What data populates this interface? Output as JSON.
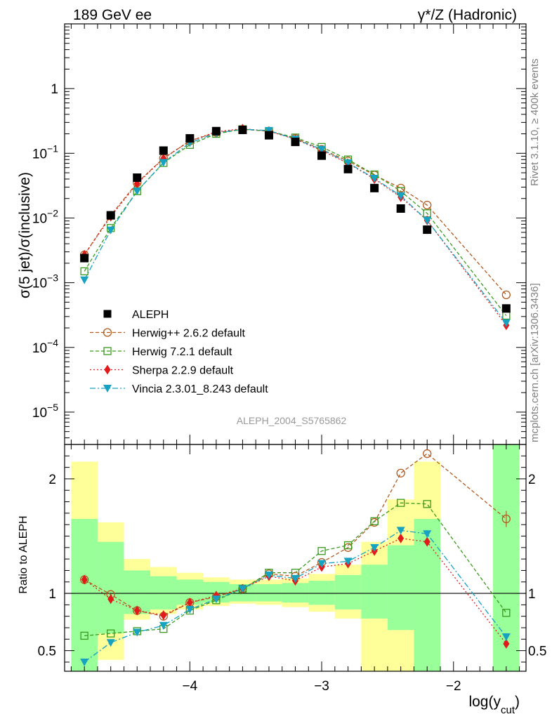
{
  "chart_data": {
    "type": "line",
    "title_left": "189 GeV ee",
    "title_right": "γ*/Z (Hadronic)",
    "analysis": "ALEPH_2004_S5765862",
    "xlabel": "log(y_cut)",
    "ylabel": "σ(5 jet)/σ(inclusive)",
    "ratio_ylabel": "Ratio to ALEPH",
    "side_text_top": "Rivet 3.1.10, ≥ 400k events",
    "side_text_bottom": "mcplots.cern.ch [arXiv:1306.3436]",
    "xlim": [
      -4.95,
      -1.45
    ],
    "ylim_log": [
      -5.5,
      1.0
    ],
    "ratio_ylim": [
      0.32,
      2.3
    ],
    "x_ticks": [
      -4,
      -3,
      -2
    ],
    "x_tick_labels": [
      "−4",
      "−3",
      "−2"
    ],
    "y_tick_labels": [
      {
        "base": "10",
        "exp": "−5",
        "pow": -5
      },
      {
        "base": "10",
        "exp": "−4",
        "pow": -4
      },
      {
        "base": "10",
        "exp": "−3",
        "pow": -3
      },
      {
        "base": "10",
        "exp": "−2",
        "pow": -2
      },
      {
        "base": "10",
        "exp": "−1",
        "pow": -1
      },
      {
        "base": "1",
        "exp": "",
        "pow": 0
      }
    ],
    "ratio_y_ticks": [
      0.5,
      1,
      2
    ],
    "ratio_y_tick_labels": [
      "0.5",
      "1",
      "2"
    ],
    "x": [
      -4.8,
      -4.6,
      -4.4,
      -4.2,
      -4.0,
      -3.8,
      -3.6,
      -3.4,
      -3.2,
      -3.0,
      -2.8,
      -2.6,
      -2.4,
      -2.2,
      -1.6
    ],
    "bin_edges": [
      -4.9,
      -4.7,
      -4.5,
      -4.3,
      -4.1,
      -3.9,
      -3.7,
      -3.5,
      -3.3,
      -3.1,
      -2.9,
      -2.7,
      -2.5,
      -2.3,
      -2.1,
      -1.7,
      -1.5
    ],
    "band_yellow": [
      [
        -4.9,
        -4.7,
        0.32,
        2.15
      ],
      [
        -4.7,
        -4.5,
        0.42,
        1.62
      ],
      [
        -4.5,
        -4.3,
        0.77,
        1.3
      ],
      [
        -4.3,
        -4.1,
        0.82,
        1.23
      ],
      [
        -4.1,
        -3.9,
        0.86,
        1.18
      ],
      [
        -3.9,
        -3.7,
        0.89,
        1.14
      ],
      [
        -3.7,
        -3.5,
        0.91,
        1.12
      ],
      [
        -3.5,
        -3.3,
        0.9,
        1.12
      ],
      [
        -3.3,
        -3.1,
        0.88,
        1.13
      ],
      [
        -3.1,
        -2.9,
        0.84,
        1.17
      ],
      [
        -2.9,
        -2.7,
        0.78,
        1.25
      ],
      [
        -2.7,
        -2.5,
        0.32,
        1.45
      ],
      [
        -2.5,
        -2.3,
        0.32,
        1.82
      ],
      [
        -2.3,
        -2.1,
        0.32,
        2.15
      ],
      [
        -1.7,
        -1.5,
        0.32,
        2.3
      ]
    ],
    "band_green": [
      [
        -4.9,
        -4.7,
        0.32,
        1.65
      ],
      [
        -4.7,
        -4.5,
        0.65,
        1.45
      ],
      [
        -4.5,
        -4.3,
        0.82,
        1.2
      ],
      [
        -4.3,
        -4.1,
        0.86,
        1.15
      ],
      [
        -4.1,
        -3.9,
        0.9,
        1.12
      ],
      [
        -3.9,
        -3.7,
        0.92,
        1.1
      ],
      [
        -3.7,
        -3.5,
        0.93,
        1.08
      ],
      [
        -3.5,
        -3.3,
        0.93,
        1.08
      ],
      [
        -3.3,
        -3.1,
        0.92,
        1.09
      ],
      [
        -3.1,
        -2.9,
        0.9,
        1.11
      ],
      [
        -2.9,
        -2.7,
        0.86,
        1.16
      ],
      [
        -2.7,
        -2.5,
        0.78,
        1.25
      ],
      [
        -2.5,
        -2.3,
        0.68,
        1.42
      ],
      [
        -2.3,
        -2.1,
        0.32,
        1.65
      ],
      [
        -1.7,
        -1.5,
        0.32,
        2.3
      ]
    ],
    "series": [
      {
        "name": "ALEPH",
        "legend": "ALEPH",
        "color": "#000000",
        "marker": "square",
        "line": "none",
        "values": [
          0.0024,
          0.011,
          0.042,
          0.11,
          0.17,
          0.22,
          0.23,
          0.19,
          0.15,
          0.092,
          0.057,
          0.029,
          0.014,
          0.0066,
          0.0004
        ]
      },
      {
        "name": "Herwig++ 2.6.2 default",
        "legend": "Herwig++ 2.6.2 default",
        "color": "#b35a1f",
        "marker": "open-circle",
        "line": "dashed",
        "values": [
          0.0027,
          0.011,
          0.035,
          0.084,
          0.155,
          0.21,
          0.235,
          0.22,
          0.17,
          0.115,
          0.076,
          0.046,
          0.029,
          0.0158,
          0.00065
        ],
        "ratio": [
          1.12,
          0.99,
          0.85,
          0.8,
          0.92,
          0.97,
          1.04,
          1.17,
          1.15,
          1.27,
          1.4,
          1.62,
          2.05,
          2.22,
          1.65
        ]
      },
      {
        "name": "Herwig 7.2.1 default",
        "legend": "Herwig 7.2.1 default",
        "color": "#3b9a1e",
        "marker": "open-square",
        "line": "dashed",
        "values": [
          0.0015,
          0.007,
          0.026,
          0.071,
          0.135,
          0.2,
          0.235,
          0.22,
          0.175,
          0.125,
          0.08,
          0.047,
          0.026,
          0.0118,
          0.00031
        ],
        "ratio": [
          0.63,
          0.65,
          0.67,
          0.69,
          0.85,
          0.94,
          1.04,
          1.18,
          1.18,
          1.37,
          1.42,
          1.63,
          1.79,
          1.78,
          0.83
        ]
      },
      {
        "name": "Sherpa 2.2.9 default",
        "legend": "Sherpa 2.2.9 default",
        "color": "#e31a1c",
        "marker": "diamond",
        "line": "dotted",
        "values": [
          0.0027,
          0.0105,
          0.034,
          0.083,
          0.155,
          0.215,
          0.24,
          0.22,
          0.165,
          0.11,
          0.07,
          0.04,
          0.021,
          0.0092,
          0.00022
        ],
        "ratio": [
          1.12,
          0.95,
          0.85,
          0.81,
          0.92,
          0.98,
          1.04,
          1.15,
          1.11,
          1.23,
          1.26,
          1.37,
          1.48,
          1.45,
          0.56
        ]
      },
      {
        "name": "Vincia 2.3.01_8.243 default",
        "legend": "Vincia 2.3.01_8.243 default",
        "color": "#17a2c2",
        "marker": "down-triangle",
        "line": "dashdot",
        "values": [
          0.0011,
          0.0065,
          0.026,
          0.072,
          0.145,
          0.205,
          0.235,
          0.225,
          0.165,
          0.115,
          0.071,
          0.041,
          0.022,
          0.0092,
          0.00024
        ],
        "ratio": [
          0.4,
          0.57,
          0.66,
          0.72,
          0.86,
          0.95,
          1.04,
          1.16,
          1.13,
          1.26,
          1.28,
          1.4,
          1.55,
          1.52,
          0.62
        ]
      }
    ]
  }
}
